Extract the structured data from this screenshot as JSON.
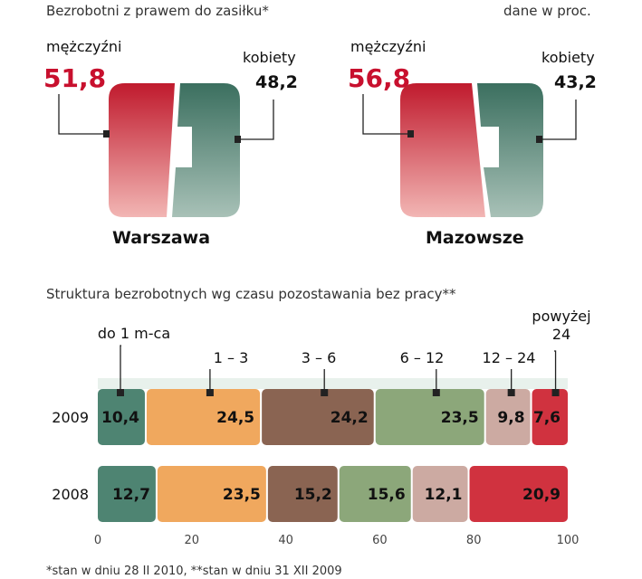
{
  "header": {
    "title": "Bezrobotni z prawem do zasiłku*",
    "unit_note": "dane w proc."
  },
  "gender_charts": [
    {
      "region": "Warszawa",
      "men_label": "mężczyźni",
      "men_value": "51,8",
      "women_label": "kobiety",
      "women_value": "48,2"
    },
    {
      "region": "Mazowsze",
      "men_label": "mężczyźni",
      "men_value": "56,8",
      "women_label": "kobiety",
      "women_value": "43,2"
    }
  ],
  "footnote": "*stan w dniu 28 II 2010, **stan w dniu 31 XII 2009",
  "colors": {
    "men": "#d0323f",
    "women": "#4e8472",
    "seg1": "#4e8472",
    "seg2": "#f0a85e",
    "seg3": "#8a6452",
    "seg4": "#8ca77a",
    "seg5": "#ccaaa2",
    "seg6": "#d0323f"
  },
  "chart_data": [
    {
      "type": "pie",
      "title": "Warszawa",
      "categories": [
        "mężczyźni",
        "kobiety"
      ],
      "values": [
        51.8,
        48.2
      ]
    },
    {
      "type": "pie",
      "title": "Mazowsze",
      "categories": [
        "mężczyźni",
        "kobiety"
      ],
      "values": [
        56.8,
        43.2
      ]
    },
    {
      "type": "bar",
      "title": "Struktura bezrobotnych wg czasu pozostawania bez pracy**",
      "orientation": "horizontal-stacked",
      "categories": [
        "do 1 m-ca",
        "1 – 3",
        "3 – 6",
        "6 – 12",
        "12 – 24",
        "powyżej 24"
      ],
      "series": [
        {
          "name": "2009",
          "values": [
            10.4,
            24.5,
            24.2,
            23.5,
            9.8,
            7.6
          ],
          "labels": [
            "10,4",
            "24,5",
            "24,2",
            "23,5",
            "9,8",
            "7,6"
          ]
        },
        {
          "name": "2008",
          "values": [
            12.7,
            23.5,
            15.2,
            15.6,
            12.1,
            20.9
          ],
          "labels": [
            "12,7",
            "23,5",
            "15,2",
            "15,6",
            "12,1",
            "20,9"
          ]
        }
      ],
      "xlim": [
        0,
        100
      ],
      "xticks": [
        0,
        20,
        40,
        60,
        80,
        100
      ],
      "grid": false
    }
  ]
}
